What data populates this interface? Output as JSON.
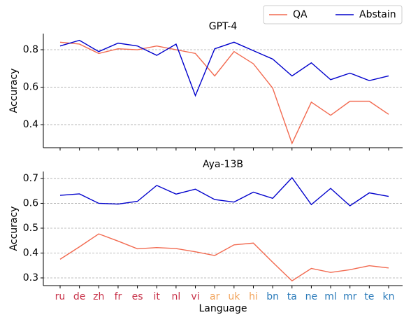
{
  "chart_data": [
    {
      "type": "line",
      "title": "GPT-4",
      "y_label": "Accuracy",
      "categories": [
        null,
        null,
        null,
        null,
        null,
        null,
        null,
        null,
        null,
        null,
        null,
        null,
        null,
        null,
        null,
        null,
        null,
        null
      ],
      "series": [
        {
          "name": "QA",
          "color": "#f26a50",
          "values": [
            0.84,
            0.83,
            0.78,
            0.805,
            0.8,
            0.82,
            0.8,
            0.78,
            0.66,
            0.79,
            0.725,
            0.595,
            0.3,
            0.52,
            0.45,
            0.525,
            0.525,
            0.455
          ]
        },
        {
          "name": "Abstain",
          "color": "#0000cc",
          "values": [
            0.82,
            0.85,
            0.79,
            0.835,
            0.82,
            0.77,
            0.83,
            0.555,
            0.805,
            0.84,
            0.795,
            0.75,
            0.66,
            0.73,
            0.64,
            0.675,
            0.635,
            0.66
          ]
        }
      ],
      "ylim": [
        0.277,
        0.886
      ],
      "yticks": [
        0.4,
        0.6,
        0.8
      ],
      "grid": true,
      "legend": "upper right"
    },
    {
      "type": "line",
      "title": "Aya-13B",
      "y_label": "Accuracy",
      "x_label": "Language",
      "categories": [
        "ru",
        "de",
        "zh",
        "fr",
        "es",
        "it",
        "nl",
        "vi",
        "ar",
        "uk",
        "hi",
        "bn",
        "ta",
        "ne",
        "ml",
        "mr",
        "te",
        "kn"
      ],
      "category_colors": [
        "#c8334a",
        "#c8334a",
        "#c8334a",
        "#c8334a",
        "#c8334a",
        "#c8334a",
        "#c8334a",
        "#c8334a",
        "#f2a45c",
        "#f2a45c",
        "#f2a45c",
        "#2b7bba",
        "#2b7bba",
        "#2b7bba",
        "#2b7bba",
        "#2b7bba",
        "#2b7bba",
        "#2b7bba"
      ],
      "series": [
        {
          "name": "QA",
          "color": "#f26a50",
          "values": [
            0.375,
            0.425,
            0.477,
            0.448,
            0.417,
            0.422,
            0.418,
            0.405,
            0.39,
            0.433,
            0.44,
            0.363,
            0.288,
            0.338,
            0.322,
            0.333,
            0.349,
            0.34
          ]
        },
        {
          "name": "Abstain",
          "color": "#0000cc",
          "values": [
            0.632,
            0.638,
            0.6,
            0.597,
            0.608,
            0.672,
            0.637,
            0.657,
            0.615,
            0.605,
            0.645,
            0.62,
            0.703,
            0.595,
            0.66,
            0.59,
            0.642,
            0.628
          ]
        }
      ],
      "ylim": [
        0.269,
        0.728
      ],
      "yticks": [
        0.3,
        0.4,
        0.5,
        0.6,
        0.7
      ],
      "grid": true
    }
  ]
}
